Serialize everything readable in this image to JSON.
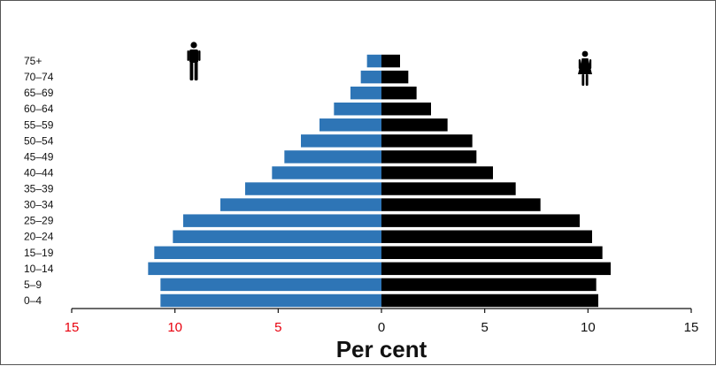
{
  "chart_data": {
    "type": "bar",
    "orientation": "horizontal-population-pyramid",
    "title": "",
    "xlabel": "Per cent",
    "ylabel": "",
    "xlim": [
      -15,
      15
    ],
    "age_groups": [
      "0–4",
      "5–9",
      "10–14",
      "15–19",
      "20–24",
      "25–29",
      "30–34",
      "35–39",
      "40–44",
      "45–49",
      "50–54",
      "55–59",
      "60–64",
      "65–69",
      "70–74",
      "75+"
    ],
    "x_ticks": [
      {
        "value": -15,
        "label": "15",
        "color": "#e8000d"
      },
      {
        "value": -10,
        "label": "10",
        "color": "#e8000d"
      },
      {
        "value": -5,
        "label": "5",
        "color": "#e8000d"
      },
      {
        "value": 0,
        "label": "0",
        "color": "#111111"
      },
      {
        "value": 5,
        "label": "5",
        "color": "#111111"
      },
      {
        "value": 10,
        "label": "10",
        "color": "#111111"
      },
      {
        "value": 15,
        "label": "15",
        "color": "#111111"
      }
    ],
    "series": [
      {
        "side": "left",
        "icon": "male-icon",
        "color": "#2e75b6",
        "values": [
          10.7,
          10.7,
          11.3,
          11.0,
          10.1,
          9.6,
          7.8,
          6.6,
          5.3,
          4.7,
          3.9,
          3.0,
          2.3,
          1.5,
          1.0,
          0.7
        ]
      },
      {
        "side": "right",
        "icon": "female-icon",
        "color": "#000000",
        "values": [
          10.5,
          10.4,
          11.1,
          10.7,
          10.2,
          9.6,
          7.7,
          6.5,
          5.4,
          4.6,
          4.4,
          3.2,
          2.4,
          1.7,
          1.3,
          0.9
        ]
      }
    ],
    "grid": false,
    "legend": "icons-above-bars"
  }
}
